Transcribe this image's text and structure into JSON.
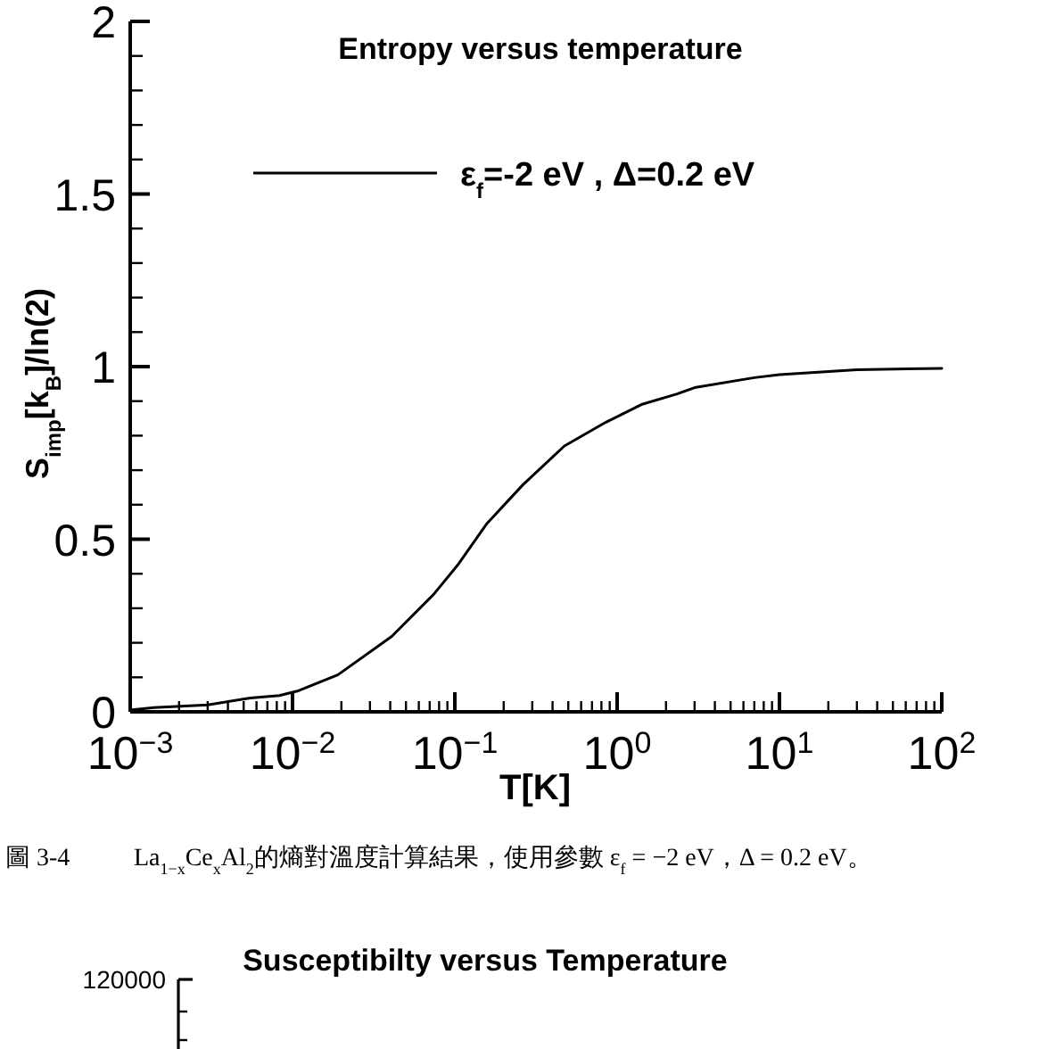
{
  "chart_data": [
    {
      "type": "line",
      "title": "Entropy versus temperature",
      "xlabel": "T[K]",
      "ylabel": "S$_{imp}$[k$_{B}$]/ln(2)",
      "log": "x",
      "xlim": [
        0.001,
        100
      ],
      "xticks": [
        {
          "value": 0.001,
          "label": "10$^{−3}$"
        },
        {
          "value": 0.01,
          "label": "10$^{−2}$"
        },
        {
          "value": 0.1,
          "label": "10$^{−1}$"
        },
        {
          "value": 1,
          "label": "10$^{0}$"
        },
        {
          "value": 10,
          "label": "10$^{1}$"
        },
        {
          "value": 100,
          "label": "10$^{2}$"
        }
      ],
      "ylim": [
        0,
        2
      ],
      "yticks": [
        0,
        0.5,
        1,
        1.5,
        2
      ],
      "x": [
        0.001,
        0.0014,
        0.003,
        0.0055,
        0.0083,
        0.0107,
        0.019,
        0.041,
        0.074,
        0.104,
        0.158,
        0.263,
        0.473,
        0.853,
        1.41,
        2.34,
        3.0,
        7.0,
        10,
        30,
        100
      ],
      "series": [
        {
          "name": "ε$_{f}$=-2 eV , Δ=0.2 eV",
          "color": "#000000",
          "values": [
            0.005,
            0.012,
            0.02,
            0.04,
            0.047,
            0.06,
            0.107,
            0.219,
            0.34,
            0.425,
            0.546,
            0.658,
            0.77,
            0.839,
            0.89,
            0.921,
            0.939,
            0.968,
            0.977,
            0.991,
            0.995
          ]
        }
      ],
      "legend": "top",
      "line_style": "solid",
      "annotations": [
        "圖 3-4",
        "La$_{1−x}$Ce$_{x}$Al$_{2}$的熵對溫度計算結果，使用參數 ε$_{f}$ = −2 eV，Δ = 0.2 eV。"
      ]
    },
    {
      "type": "other",
      "title": "Susceptibilty versus Temperature",
      "annotations": [
        "120000"
      ]
    }
  ]
}
